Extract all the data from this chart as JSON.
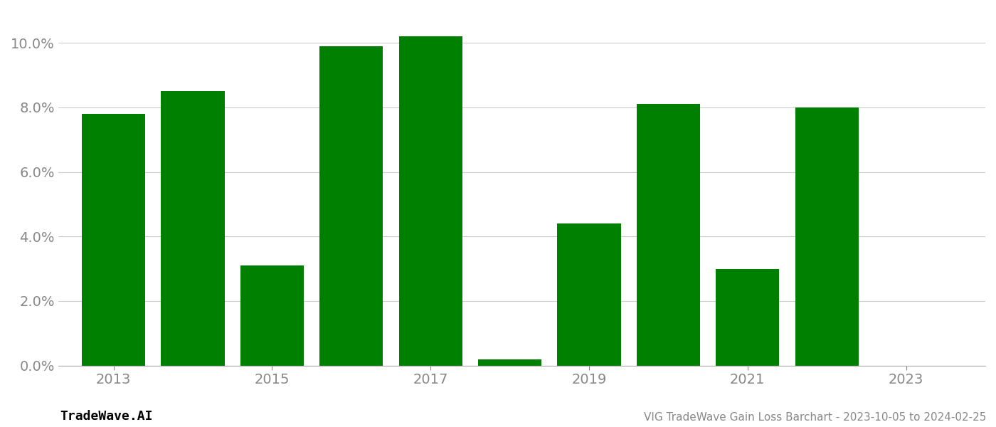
{
  "years": [
    2013,
    2014,
    2015,
    2016,
    2017,
    2018,
    2019,
    2020,
    2021,
    2022,
    2023
  ],
  "values": [
    0.078,
    0.085,
    0.031,
    0.099,
    0.102,
    0.002,
    0.044,
    0.081,
    0.03,
    0.08,
    0.0
  ],
  "bar_color": "#008000",
  "background_color": "#ffffff",
  "title": "VIG TradeWave Gain Loss Barchart - 2023-10-05 to 2024-02-25",
  "watermark": "TradeWave.AI",
  "xlim": [
    2012.3,
    2024.0
  ],
  "ylim": [
    0,
    0.11
  ],
  "yticks": [
    0.0,
    0.02,
    0.04,
    0.06,
    0.08,
    0.1
  ],
  "xticks": [
    2013,
    2015,
    2017,
    2019,
    2021,
    2023
  ],
  "grid_color": "#cccccc",
  "label_color": "#888888",
  "title_color": "#888888",
  "watermark_color": "#000000",
  "bar_width": 0.8
}
